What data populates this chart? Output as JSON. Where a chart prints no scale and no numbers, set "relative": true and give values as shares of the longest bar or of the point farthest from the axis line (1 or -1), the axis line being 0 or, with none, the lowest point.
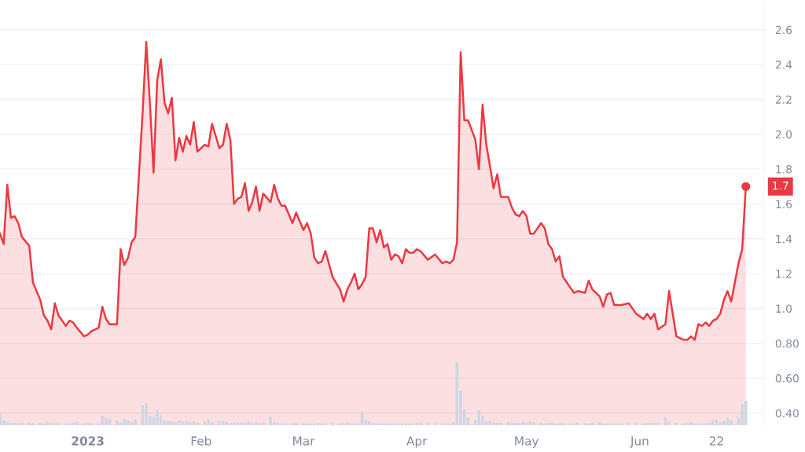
{
  "chart_data": [
    {
      "type": "area",
      "xlim": [
        "2022-12-08",
        "2023-07-05"
      ],
      "ylim": [
        0.33,
        2.75
      ],
      "yticks": [
        {
          "value": 0.4,
          "label": "0.40"
        },
        {
          "value": 0.6,
          "label": "0.60"
        },
        {
          "value": 0.8,
          "label": "0.80"
        },
        {
          "value": 1.0,
          "label": "1.0"
        },
        {
          "value": 1.2,
          "label": "1.2"
        },
        {
          "value": 1.4,
          "label": "1.4"
        },
        {
          "value": 1.6,
          "label": "1.6"
        },
        {
          "value": 1.8,
          "label": "1.8"
        },
        {
          "value": 2.0,
          "label": "2.0"
        },
        {
          "value": 2.2,
          "label": "2.2"
        },
        {
          "value": 2.4,
          "label": "2.4"
        },
        {
          "value": 2.6,
          "label": "2.6"
        }
      ],
      "grid": "y",
      "tick_labels": "y",
      "marker": "none",
      "line_style": "solid",
      "annotations": [
        {
          "text": "1.7",
          "x": "2023-06-30",
          "y": 1.7
        }
      ],
      "x": [
        "2022-12-08",
        "2022-12-09",
        "2022-12-10",
        "2022-12-11",
        "2022-12-12",
        "2022-12-13",
        "2022-12-14",
        "2022-12-16",
        "2022-12-17",
        "2022-12-19",
        "2022-12-20",
        "2022-12-21",
        "2022-12-22",
        "2022-12-23",
        "2022-12-24",
        "2022-12-26",
        "2022-12-27",
        "2022-12-28",
        "2022-12-29",
        "2022-12-31",
        "2023-01-01",
        "2023-01-02",
        "2023-01-04",
        "2023-01-05",
        "2023-01-06",
        "2023-01-07",
        "2023-01-09",
        "2023-01-10",
        "2023-01-11",
        "2023-01-12",
        "2023-01-13",
        "2023-01-14",
        "2023-01-16",
        "2023-01-17",
        "2023-01-18",
        "2023-01-19",
        "2023-01-20",
        "2023-01-21",
        "2023-01-22",
        "2023-01-23",
        "2023-01-24",
        "2023-01-25",
        "2023-01-26",
        "2023-01-27",
        "2023-01-28",
        "2023-01-29",
        "2023-01-30",
        "2023-01-31",
        "2023-02-02",
        "2023-02-03",
        "2023-02-04",
        "2023-02-06",
        "2023-02-07",
        "2023-02-08",
        "2023-02-09",
        "2023-02-10",
        "2023-02-11",
        "2023-02-12",
        "2023-02-13",
        "2023-02-14",
        "2023-02-15",
        "2023-02-16",
        "2023-02-17",
        "2023-02-18",
        "2023-02-20",
        "2023-02-21",
        "2023-02-22",
        "2023-02-23",
        "2023-02-24",
        "2023-02-26",
        "2023-02-27",
        "2023-03-01",
        "2023-03-02",
        "2023-03-03",
        "2023-03-04",
        "2023-03-05",
        "2023-03-06",
        "2023-03-07",
        "2023-03-09",
        "2023-03-11",
        "2023-03-12",
        "2023-03-13",
        "2023-03-14",
        "2023-03-15",
        "2023-03-16",
        "2023-03-17",
        "2023-03-18",
        "2023-03-19",
        "2023-03-20",
        "2023-03-21",
        "2023-03-22",
        "2023-03-23",
        "2023-03-24",
        "2023-03-25",
        "2023-03-26",
        "2023-03-27",
        "2023-03-28",
        "2023-03-29",
        "2023-03-30",
        "2023-03-31",
        "2023-04-01",
        "2023-04-02",
        "2023-04-04",
        "2023-04-06",
        "2023-04-08",
        "2023-04-09",
        "2023-04-10",
        "2023-04-11",
        "2023-04-12",
        "2023-04-13",
        "2023-04-14",
        "2023-04-15",
        "2023-04-17",
        "2023-04-18",
        "2023-04-19",
        "2023-04-20",
        "2023-04-21",
        "2023-04-22",
        "2023-04-23",
        "2023-04-24",
        "2023-04-26",
        "2023-04-27",
        "2023-04-28",
        "2023-04-29",
        "2023-04-30",
        "2023-05-01",
        "2023-05-02",
        "2023-05-03",
        "2023-05-05",
        "2023-05-06",
        "2023-05-07",
        "2023-05-08",
        "2023-05-09",
        "2023-05-10",
        "2023-05-11",
        "2023-05-13",
        "2023-05-14",
        "2023-05-15",
        "2023-05-17",
        "2023-05-18",
        "2023-05-19",
        "2023-05-21",
        "2023-05-22",
        "2023-05-23",
        "2023-05-24",
        "2023-05-25",
        "2023-05-26",
        "2023-05-27",
        "2023-05-29",
        "2023-05-31",
        "2023-06-02",
        "2023-06-03",
        "2023-06-04",
        "2023-06-05",
        "2023-06-06",
        "2023-06-08",
        "2023-06-09",
        "2023-06-11",
        "2023-06-13",
        "2023-06-14",
        "2023-06-15",
        "2023-06-16",
        "2023-06-17",
        "2023-06-18",
        "2023-06-19",
        "2023-06-20",
        "2023-06-21",
        "2023-06-22",
        "2023-06-23",
        "2023-06-24",
        "2023-06-25",
        "2023-06-26",
        "2023-06-28",
        "2023-06-29",
        "2023-06-30"
      ],
      "series": [
        {
          "color": "#ea3943",
          "values": [
            1.43,
            1.37,
            1.71,
            1.52,
            1.53,
            1.49,
            1.41,
            1.36,
            1.15,
            1.05,
            0.96,
            0.93,
            0.88,
            1.03,
            0.96,
            0.9,
            0.93,
            0.92,
            0.89,
            0.84,
            0.85,
            0.87,
            0.89,
            1.01,
            0.94,
            0.91,
            0.91,
            1.34,
            1.25,
            1.29,
            1.38,
            1.41,
            2.12,
            2.53,
            2.18,
            1.78,
            2.31,
            2.43,
            2.18,
            2.12,
            2.21,
            1.85,
            1.98,
            1.9,
            1.99,
            1.94,
            2.07,
            1.9,
            1.94,
            1.93,
            2.06,
            1.92,
            1.94,
            2.06,
            1.97,
            1.6,
            1.63,
            1.64,
            1.72,
            1.56,
            1.61,
            1.7,
            1.56,
            1.66,
            1.61,
            1.71,
            1.63,
            1.59,
            1.59,
            1.49,
            1.55,
            1.45,
            1.49,
            1.43,
            1.29,
            1.26,
            1.27,
            1.33,
            1.18,
            1.11,
            1.04,
            1.11,
            1.15,
            1.2,
            1.11,
            1.14,
            1.18,
            1.46,
            1.46,
            1.38,
            1.45,
            1.35,
            1.37,
            1.28,
            1.31,
            1.3,
            1.26,
            1.34,
            1.32,
            1.32,
            1.34,
            1.33,
            1.28,
            1.31,
            1.26,
            1.27,
            1.26,
            1.28,
            1.38,
            2.47,
            2.08,
            2.08,
            1.97,
            1.8,
            2.17,
            1.94,
            1.82,
            1.69,
            1.77,
            1.64,
            1.64,
            1.58,
            1.54,
            1.53,
            1.56,
            1.53,
            1.43,
            1.43,
            1.49,
            1.46,
            1.37,
            1.34,
            1.27,
            1.3,
            1.18,
            1.12,
            1.09,
            1.1,
            1.09,
            1.16,
            1.11,
            1.07,
            1.01,
            1.08,
            1.09,
            1.02,
            1.02,
            1.02,
            1.03,
            0.97,
            0.94,
            0.97,
            0.94,
            0.97,
            0.88,
            0.91,
            1.1,
            0.84,
            0.82,
            0.82,
            0.84,
            0.82,
            0.91,
            0.9,
            0.92,
            0.9,
            0.93,
            0.94,
            0.97,
            1.05,
            1.1,
            1.04,
            1.26,
            1.34,
            1.7
          ]
        }
      ]
    },
    {
      "type": "bar",
      "relative": true,
      "xlim": [
        "2022-12-08",
        "2023-07-05"
      ],
      "xticks": [
        {
          "value": "2023-01-01",
          "label": "2023"
        },
        {
          "value": "2023-02-01",
          "label": "Feb"
        },
        {
          "value": "2023-03-01",
          "label": "Mar"
        },
        {
          "value": "2023-04-01",
          "label": "Apr"
        },
        {
          "value": "2023-05-01",
          "label": "May"
        },
        {
          "value": "2023-06-01",
          "label": "Jun"
        },
        {
          "value": "2023-06-22",
          "label": "22"
        }
      ],
      "tick_labels": "x",
      "grid": false,
      "x": [
        "2022-12-08",
        "2022-12-09",
        "2022-12-10",
        "2022-12-11",
        "2022-12-12",
        "2022-12-13",
        "2022-12-14",
        "2022-12-16",
        "2022-12-17",
        "2022-12-19",
        "2022-12-20",
        "2022-12-21",
        "2022-12-22",
        "2022-12-23",
        "2022-12-24",
        "2022-12-26",
        "2022-12-27",
        "2022-12-28",
        "2022-12-29",
        "2022-12-31",
        "2023-01-01",
        "2023-01-02",
        "2023-01-04",
        "2023-01-05",
        "2023-01-06",
        "2023-01-07",
        "2023-01-09",
        "2023-01-10",
        "2023-01-11",
        "2023-01-12",
        "2023-01-13",
        "2023-01-14",
        "2023-01-16",
        "2023-01-17",
        "2023-01-18",
        "2023-01-19",
        "2023-01-20",
        "2023-01-21",
        "2023-01-22",
        "2023-01-23",
        "2023-01-24",
        "2023-01-25",
        "2023-01-26",
        "2023-01-27",
        "2023-01-28",
        "2023-01-29",
        "2023-01-30",
        "2023-01-31",
        "2023-02-02",
        "2023-02-03",
        "2023-02-04",
        "2023-02-06",
        "2023-02-07",
        "2023-02-08",
        "2023-02-09",
        "2023-02-10",
        "2023-02-11",
        "2023-02-12",
        "2023-02-13",
        "2023-02-14",
        "2023-02-15",
        "2023-02-16",
        "2023-02-17",
        "2023-02-18",
        "2023-02-20",
        "2023-02-21",
        "2023-02-22",
        "2023-02-23",
        "2023-02-24",
        "2023-02-26",
        "2023-02-27",
        "2023-03-01",
        "2023-03-02",
        "2023-03-03",
        "2023-03-04",
        "2023-03-05",
        "2023-03-06",
        "2023-03-07",
        "2023-03-09",
        "2023-03-11",
        "2023-03-12",
        "2023-03-13",
        "2023-03-14",
        "2023-03-15",
        "2023-03-16",
        "2023-03-17",
        "2023-03-18",
        "2023-03-19",
        "2023-03-20",
        "2023-03-21",
        "2023-03-22",
        "2023-03-23",
        "2023-03-24",
        "2023-03-25",
        "2023-03-26",
        "2023-03-27",
        "2023-03-28",
        "2023-03-29",
        "2023-03-30",
        "2023-03-31",
        "2023-04-01",
        "2023-04-02",
        "2023-04-04",
        "2023-04-06",
        "2023-04-08",
        "2023-04-09",
        "2023-04-10",
        "2023-04-11",
        "2023-04-12",
        "2023-04-13",
        "2023-04-14",
        "2023-04-15",
        "2023-04-17",
        "2023-04-18",
        "2023-04-19",
        "2023-04-20",
        "2023-04-21",
        "2023-04-22",
        "2023-04-23",
        "2023-04-24",
        "2023-04-26",
        "2023-04-27",
        "2023-04-28",
        "2023-04-29",
        "2023-04-30",
        "2023-05-01",
        "2023-05-02",
        "2023-05-03",
        "2023-05-05",
        "2023-05-06",
        "2023-05-07",
        "2023-05-08",
        "2023-05-09",
        "2023-05-10",
        "2023-05-11",
        "2023-05-13",
        "2023-05-14",
        "2023-05-15",
        "2023-05-17",
        "2023-05-18",
        "2023-05-19",
        "2023-05-21",
        "2023-05-22",
        "2023-05-23",
        "2023-05-24",
        "2023-05-25",
        "2023-05-26",
        "2023-05-27",
        "2023-05-29",
        "2023-05-31",
        "2023-06-02",
        "2023-06-03",
        "2023-06-04",
        "2023-06-05",
        "2023-06-06",
        "2023-06-08",
        "2023-06-09",
        "2023-06-11",
        "2023-06-13",
        "2023-06-14",
        "2023-06-15",
        "2023-06-16",
        "2023-06-17",
        "2023-06-18",
        "2023-06-19",
        "2023-06-20",
        "2023-06-21",
        "2023-06-22",
        "2023-06-23",
        "2023-06-24",
        "2023-06-25",
        "2023-06-26",
        "2023-06-28",
        "2023-06-29",
        "2023-06-30"
      ],
      "series": [
        {
          "color": "#cfd6e4",
          "values": [
            0.2,
            0.08,
            0.06,
            0.04,
            0.04,
            0.03,
            0.04,
            0.04,
            0.03,
            0.04,
            0.03,
            0.06,
            0.04,
            0.03,
            0.03,
            0.03,
            0.03,
            0.04,
            0.06,
            0.03,
            0.03,
            0.03,
            0.03,
            0.15,
            0.12,
            0.1,
            0.08,
            0.05,
            0.1,
            0.08,
            0.06,
            0.1,
            0.32,
            0.35,
            0.15,
            0.14,
            0.25,
            0.16,
            0.08,
            0.07,
            0.06,
            0.05,
            0.08,
            0.06,
            0.07,
            0.05,
            0.06,
            0.04,
            0.06,
            0.09,
            0.05,
            0.07,
            0.07,
            0.05,
            0.04,
            0.05,
            0.04,
            0.05,
            0.04,
            0.06,
            0.04,
            0.05,
            0.04,
            0.04,
            0.14,
            0.05,
            0.04,
            0.03,
            0.03,
            0.03,
            0.03,
            0.03,
            0.03,
            0.03,
            0.03,
            0.04,
            0.03,
            0.03,
            0.03,
            0.03,
            0.03,
            0.04,
            0.03,
            0.03,
            0.03,
            0.22,
            0.09,
            0.06,
            0.04,
            0.03,
            0.03,
            0.03,
            0.03,
            0.03,
            0.03,
            0.03,
            0.03,
            0.03,
            0.03,
            0.03,
            0.04,
            0.04,
            0.03,
            0.03,
            0.03,
            0.03,
            0.03,
            0.05,
            1.0,
            0.55,
            0.26,
            0.12,
            0.08,
            0.24,
            0.15,
            0.06,
            0.07,
            0.04,
            0.04,
            0.04,
            0.05,
            0.04,
            0.04,
            0.04,
            0.05,
            0.04,
            0.06,
            0.05,
            0.04,
            0.03,
            0.04,
            0.04,
            0.03,
            0.03,
            0.03,
            0.03,
            0.03,
            0.04,
            0.03,
            0.03,
            0.04,
            0.05,
            0.03,
            0.03,
            0.03,
            0.03,
            0.03,
            0.03,
            0.03,
            0.03,
            0.03,
            0.04,
            0.04,
            0.04,
            0.04,
            0.13,
            0.06,
            0.04,
            0.03,
            0.03,
            0.05,
            0.03,
            0.03,
            0.03,
            0.03,
            0.04,
            0.08,
            0.09,
            0.05,
            0.07,
            0.12,
            0.08,
            0.12,
            0.33,
            0.39
          ]
        }
      ]
    }
  ]
}
